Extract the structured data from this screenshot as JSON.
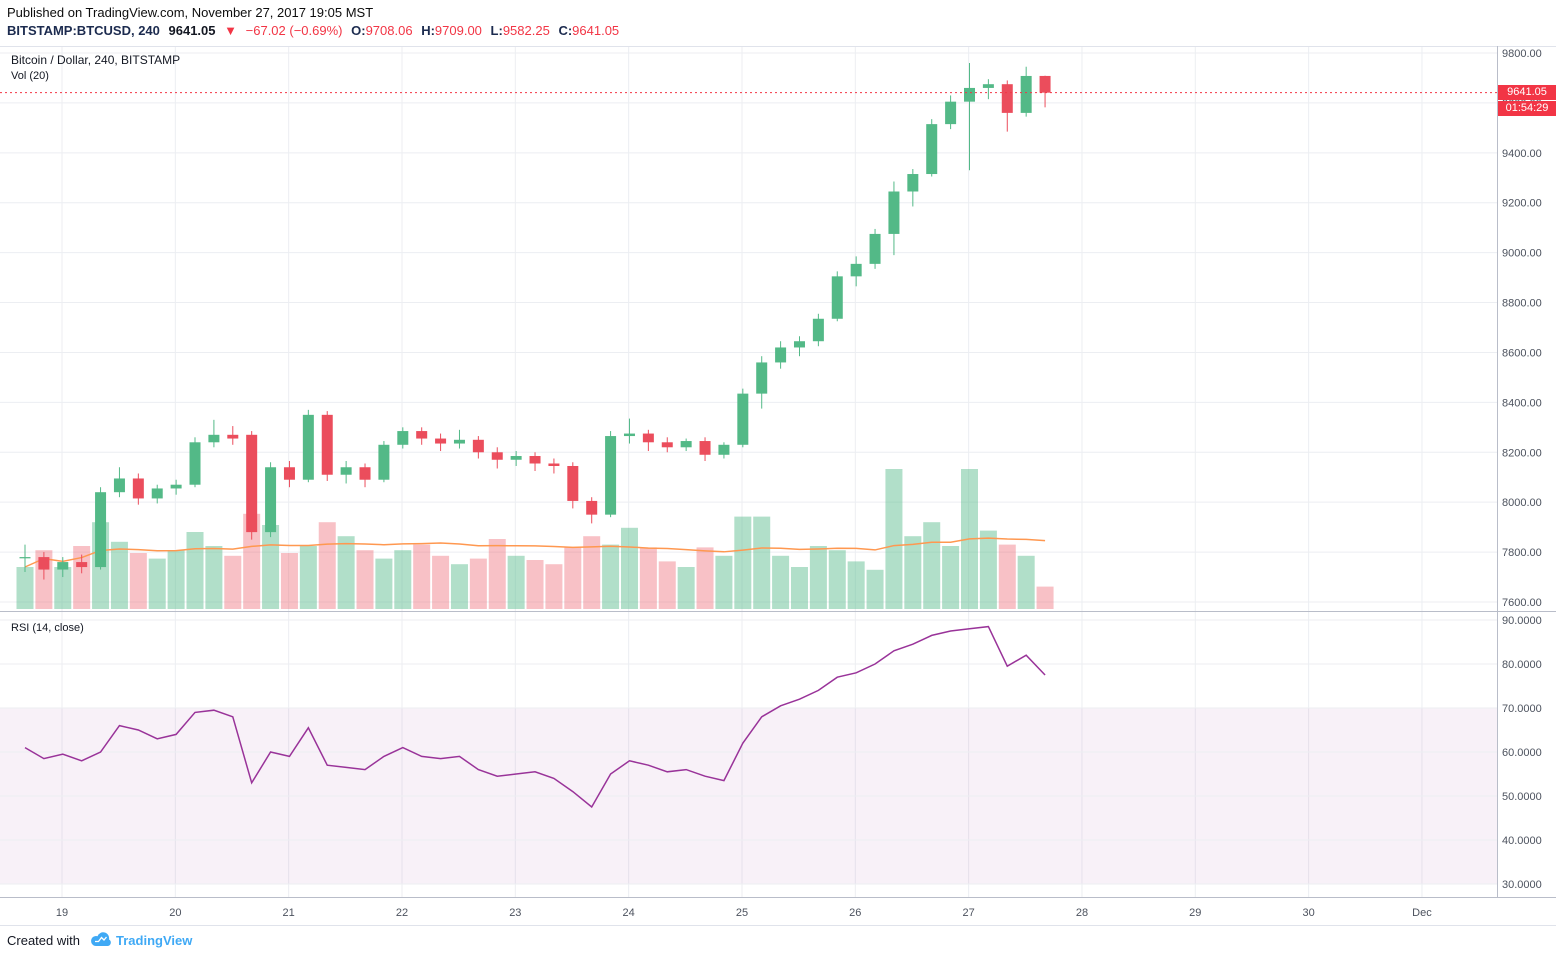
{
  "header": {
    "published": "Published on TradingView.com, November 27, 2017 19:05 MST",
    "symbol": "BITSTAMP:BTCUSD, 240",
    "price": "9641.05",
    "direction_arrow": "▼",
    "change": "−67.02 (−0.69%)",
    "open_label": "O:",
    "open": "9708.06",
    "high_label": "H:",
    "high": "9709.00",
    "low_label": "L:",
    "low": "9582.25",
    "close_label": "C:",
    "close": "9641.05"
  },
  "price_pane": {
    "title": "Bitcoin / Dollar, 240, BITSTAMP",
    "volume_label": "Vol (20)",
    "price_badge": "9641.05",
    "countdown_badge": "01:54:29"
  },
  "rsi_pane": {
    "label": "RSI (14, close)"
  },
  "footer": {
    "created_with": "Created with",
    "brand": "TradingView"
  },
  "colors": {
    "up": "#53b987",
    "down": "#eb4d5c",
    "volume_up": "rgba(83,185,135,0.45)",
    "volume_down": "rgba(235,77,92,0.35)",
    "volume_ma": "#ff9850",
    "rsi_line": "#993399",
    "rsi_band_fill": "rgba(153,51,153,0.07)",
    "rsi_band_line": "#9e9bb0",
    "badge_bg": "#f23545",
    "header_red": "#f23545",
    "brand_blue": "#3fa9f5",
    "grid": "#eceef2",
    "axis_text": "#4c525e",
    "divider": "#b9bdc9",
    "light_border": "#e0e3eb"
  },
  "chart_data": {
    "type": "candlestick",
    "title": "Bitcoin / Dollar, 240, BITSTAMP",
    "exchange": "BITSTAMP",
    "interval_minutes": 240,
    "last_price": 9641.05,
    "countdown": "01:54:29",
    "legend_entries": [
      "Bitcoin / Dollar, 240, BITSTAMP",
      "Vol (20)",
      "RSI (14, close)"
    ],
    "price_ticks": [
      9800,
      9600,
      9400,
      9200,
      9000,
      8800,
      8600,
      8400,
      8200,
      8000,
      7800,
      7600
    ],
    "rsi_ticks": [
      90,
      80,
      70,
      60,
      50,
      40,
      30
    ],
    "rsi_band": [
      70,
      30
    ],
    "x_labels": [
      "19",
      "20",
      "21",
      "22",
      "23",
      "24",
      "25",
      "26",
      "27",
      "28",
      "29",
      "30",
      "Dec"
    ],
    "candles_per_day": 6,
    "first_label_candle_index": 2,
    "volume_ma_period": 20,
    "ohlc": [
      [
        7775,
        7830,
        7720,
        7780
      ],
      [
        7780,
        7800,
        7690,
        7730
      ],
      [
        7730,
        7780,
        7700,
        7760
      ],
      [
        7760,
        7790,
        7715,
        7740
      ],
      [
        7740,
        8060,
        7730,
        8040
      ],
      [
        8040,
        8140,
        8020,
        8095
      ],
      [
        8095,
        8115,
        7990,
        8015
      ],
      [
        8015,
        8070,
        7995,
        8055
      ],
      [
        8055,
        8090,
        8030,
        8070
      ],
      [
        8070,
        8260,
        8060,
        8240
      ],
      [
        8240,
        8330,
        8220,
        8270
      ],
      [
        8270,
        8305,
        8230,
        8255
      ],
      [
        8270,
        8285,
        7850,
        7880
      ],
      [
        7880,
        8160,
        7860,
        8140
      ],
      [
        8140,
        8165,
        8060,
        8090
      ],
      [
        8090,
        8370,
        8080,
        8350
      ],
      [
        8350,
        8365,
        8085,
        8110
      ],
      [
        8110,
        8165,
        8075,
        8140
      ],
      [
        8140,
        8155,
        8060,
        8090
      ],
      [
        8090,
        8245,
        8080,
        8230
      ],
      [
        8230,
        8300,
        8215,
        8285
      ],
      [
        8285,
        8300,
        8230,
        8255
      ],
      [
        8255,
        8275,
        8205,
        8235
      ],
      [
        8235,
        8290,
        8215,
        8250
      ],
      [
        8250,
        8265,
        8175,
        8200
      ],
      [
        8200,
        8220,
        8135,
        8170
      ],
      [
        8170,
        8205,
        8145,
        8185
      ],
      [
        8185,
        8200,
        8125,
        8155
      ],
      [
        8155,
        8175,
        8115,
        8145
      ],
      [
        8145,
        8160,
        7975,
        8005
      ],
      [
        8005,
        8020,
        7915,
        7950
      ],
      [
        7950,
        8285,
        7940,
        8265
      ],
      [
        8265,
        8335,
        8235,
        8275
      ],
      [
        8275,
        8290,
        8205,
        8240
      ],
      [
        8240,
        8260,
        8200,
        8220
      ],
      [
        8220,
        8255,
        8205,
        8245
      ],
      [
        8245,
        8260,
        8165,
        8190
      ],
      [
        8190,
        8240,
        8175,
        8230
      ],
      [
        8230,
        8455,
        8220,
        8435
      ],
      [
        8435,
        8585,
        8375,
        8560
      ],
      [
        8560,
        8645,
        8535,
        8620
      ],
      [
        8620,
        8665,
        8585,
        8645
      ],
      [
        8645,
        8755,
        8625,
        8735
      ],
      [
        8735,
        8925,
        8725,
        8905
      ],
      [
        8905,
        8985,
        8865,
        8955
      ],
      [
        8955,
        9095,
        8935,
        9075
      ],
      [
        9075,
        9285,
        8990,
        9245
      ],
      [
        9245,
        9335,
        9185,
        9315
      ],
      [
        9315,
        9535,
        9305,
        9515
      ],
      [
        9515,
        9630,
        9495,
        9605
      ],
      [
        9605,
        9760,
        9330,
        9660
      ],
      [
        9660,
        9695,
        9615,
        9675
      ],
      [
        9675,
        9690,
        9485,
        9560
      ],
      [
        9560,
        9745,
        9545,
        9708
      ],
      [
        9708.06,
        9709.0,
        9582.25,
        9641.05
      ]
    ],
    "volume": [
      30,
      42,
      30,
      45,
      62,
      48,
      40,
      36,
      42,
      55,
      45,
      38,
      68,
      60,
      40,
      45,
      62,
      52,
      42,
      36,
      42,
      46,
      38,
      32,
      36,
      50,
      38,
      35,
      32,
      44,
      52,
      46,
      58,
      44,
      34,
      30,
      44,
      38,
      66,
      66,
      38,
      30,
      45,
      42,
      34,
      28,
      100,
      52,
      62,
      45,
      100,
      56,
      46,
      38,
      16
    ],
    "rsi": [
      61,
      58.5,
      59.5,
      58,
      60,
      66,
      65,
      63,
      64,
      69,
      69.5,
      68,
      53,
      60,
      59,
      65.5,
      57,
      56.5,
      56,
      59,
      61,
      59,
      58.5,
      59,
      56,
      54.5,
      55,
      55.5,
      54,
      51,
      47.5,
      55,
      58,
      57,
      55.5,
      56,
      54.5,
      53.5,
      62,
      68,
      70.5,
      72,
      74,
      77,
      78,
      80,
      83,
      84.5,
      86.5,
      87.5,
      88,
      88.5,
      79.5,
      82,
      77.5
    ]
  }
}
